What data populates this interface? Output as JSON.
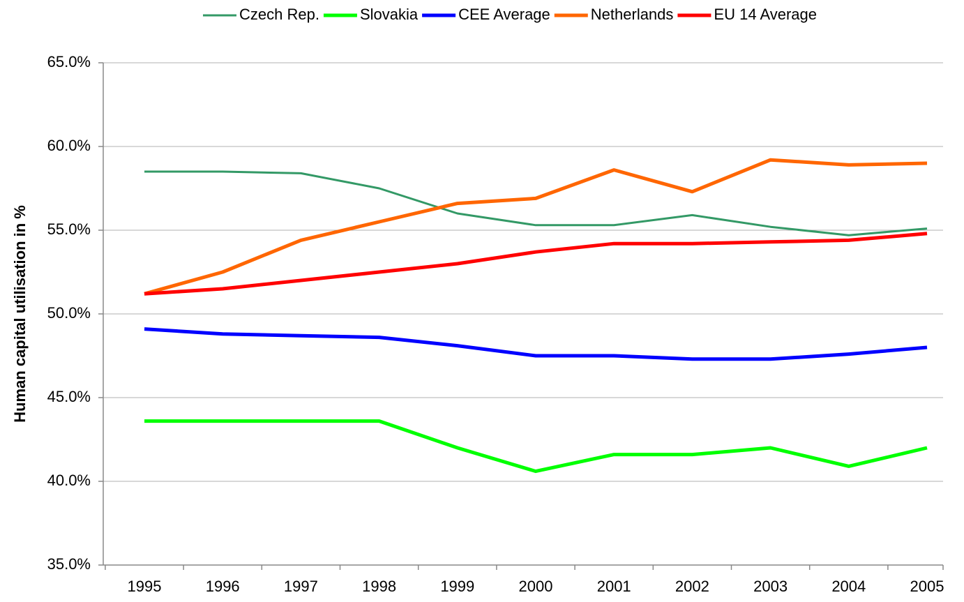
{
  "chart_data": {
    "type": "line",
    "y_label": "Human capital utilisation in %",
    "categories": [
      "1995",
      "1996",
      "1997",
      "1998",
      "1999",
      "2000",
      "2001",
      "2002",
      "2003",
      "2004",
      "2005"
    ],
    "series": [
      {
        "name": "Czech Rep.",
        "color": "#339966",
        "values": [
          58.5,
          58.5,
          58.4,
          57.5,
          56.0,
          55.3,
          55.3,
          55.9,
          55.2,
          54.7,
          55.1
        ]
      },
      {
        "name": "Slovakia",
        "color": "#00ff00",
        "values": [
          43.6,
          43.6,
          43.6,
          43.6,
          42.0,
          40.6,
          41.6,
          41.6,
          42.0,
          40.9,
          42.0
        ]
      },
      {
        "name": "CEE Average",
        "color": "#0000ff",
        "values": [
          49.1,
          48.8,
          48.7,
          48.6,
          48.1,
          47.5,
          47.5,
          47.3,
          47.3,
          47.6,
          48.0
        ]
      },
      {
        "name": "Netherlands",
        "color": "#ff6600",
        "values": [
          51.2,
          52.5,
          54.4,
          55.5,
          56.6,
          56.9,
          58.6,
          57.3,
          59.2,
          58.9,
          59.0
        ]
      },
      {
        "name": "EU 14 Average",
        "color": "#ff0000",
        "values": [
          51.2,
          51.5,
          52.0,
          52.5,
          53.0,
          53.7,
          54.2,
          54.2,
          54.3,
          54.4,
          54.8
        ]
      }
    ],
    "ylim": [
      35,
      65
    ],
    "yticks": [
      {
        "value": 35,
        "label": "35.0%"
      },
      {
        "value": 40,
        "label": "40.0%"
      },
      {
        "value": 45,
        "label": "45.0%"
      },
      {
        "value": 50,
        "label": "50.0%"
      },
      {
        "value": 55,
        "label": "55.0%"
      },
      {
        "value": 60,
        "label": "60.0%"
      },
      {
        "value": 65,
        "label": "65.0%"
      }
    ],
    "grid": true,
    "legend": "top"
  }
}
